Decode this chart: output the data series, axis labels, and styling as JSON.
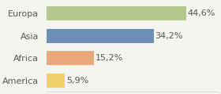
{
  "categories": [
    "America",
    "Africa",
    "Asia",
    "Europa"
  ],
  "values": [
    5.9,
    15.2,
    34.2,
    44.6
  ],
  "labels": [
    "5,9%",
    "15,2%",
    "34,2%",
    "44,6%"
  ],
  "bar_colors": [
    "#f0d06a",
    "#e8a87c",
    "#6e8fb5",
    "#b5c98e"
  ],
  "background_color": "#f5f5f0",
  "xlim": [
    0,
    55
  ],
  "label_fontsize": 8,
  "category_fontsize": 8
}
